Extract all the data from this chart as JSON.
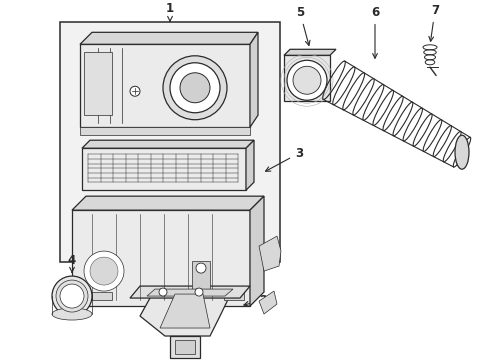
{
  "background_color": "#ffffff",
  "line_color": "#2a2a2a",
  "fill_light": "#f0f0f0",
  "fill_mid": "#e0e0e0",
  "fill_dark": "#cccccc",
  "figsize": [
    4.89,
    3.6
  ],
  "dpi": 100
}
